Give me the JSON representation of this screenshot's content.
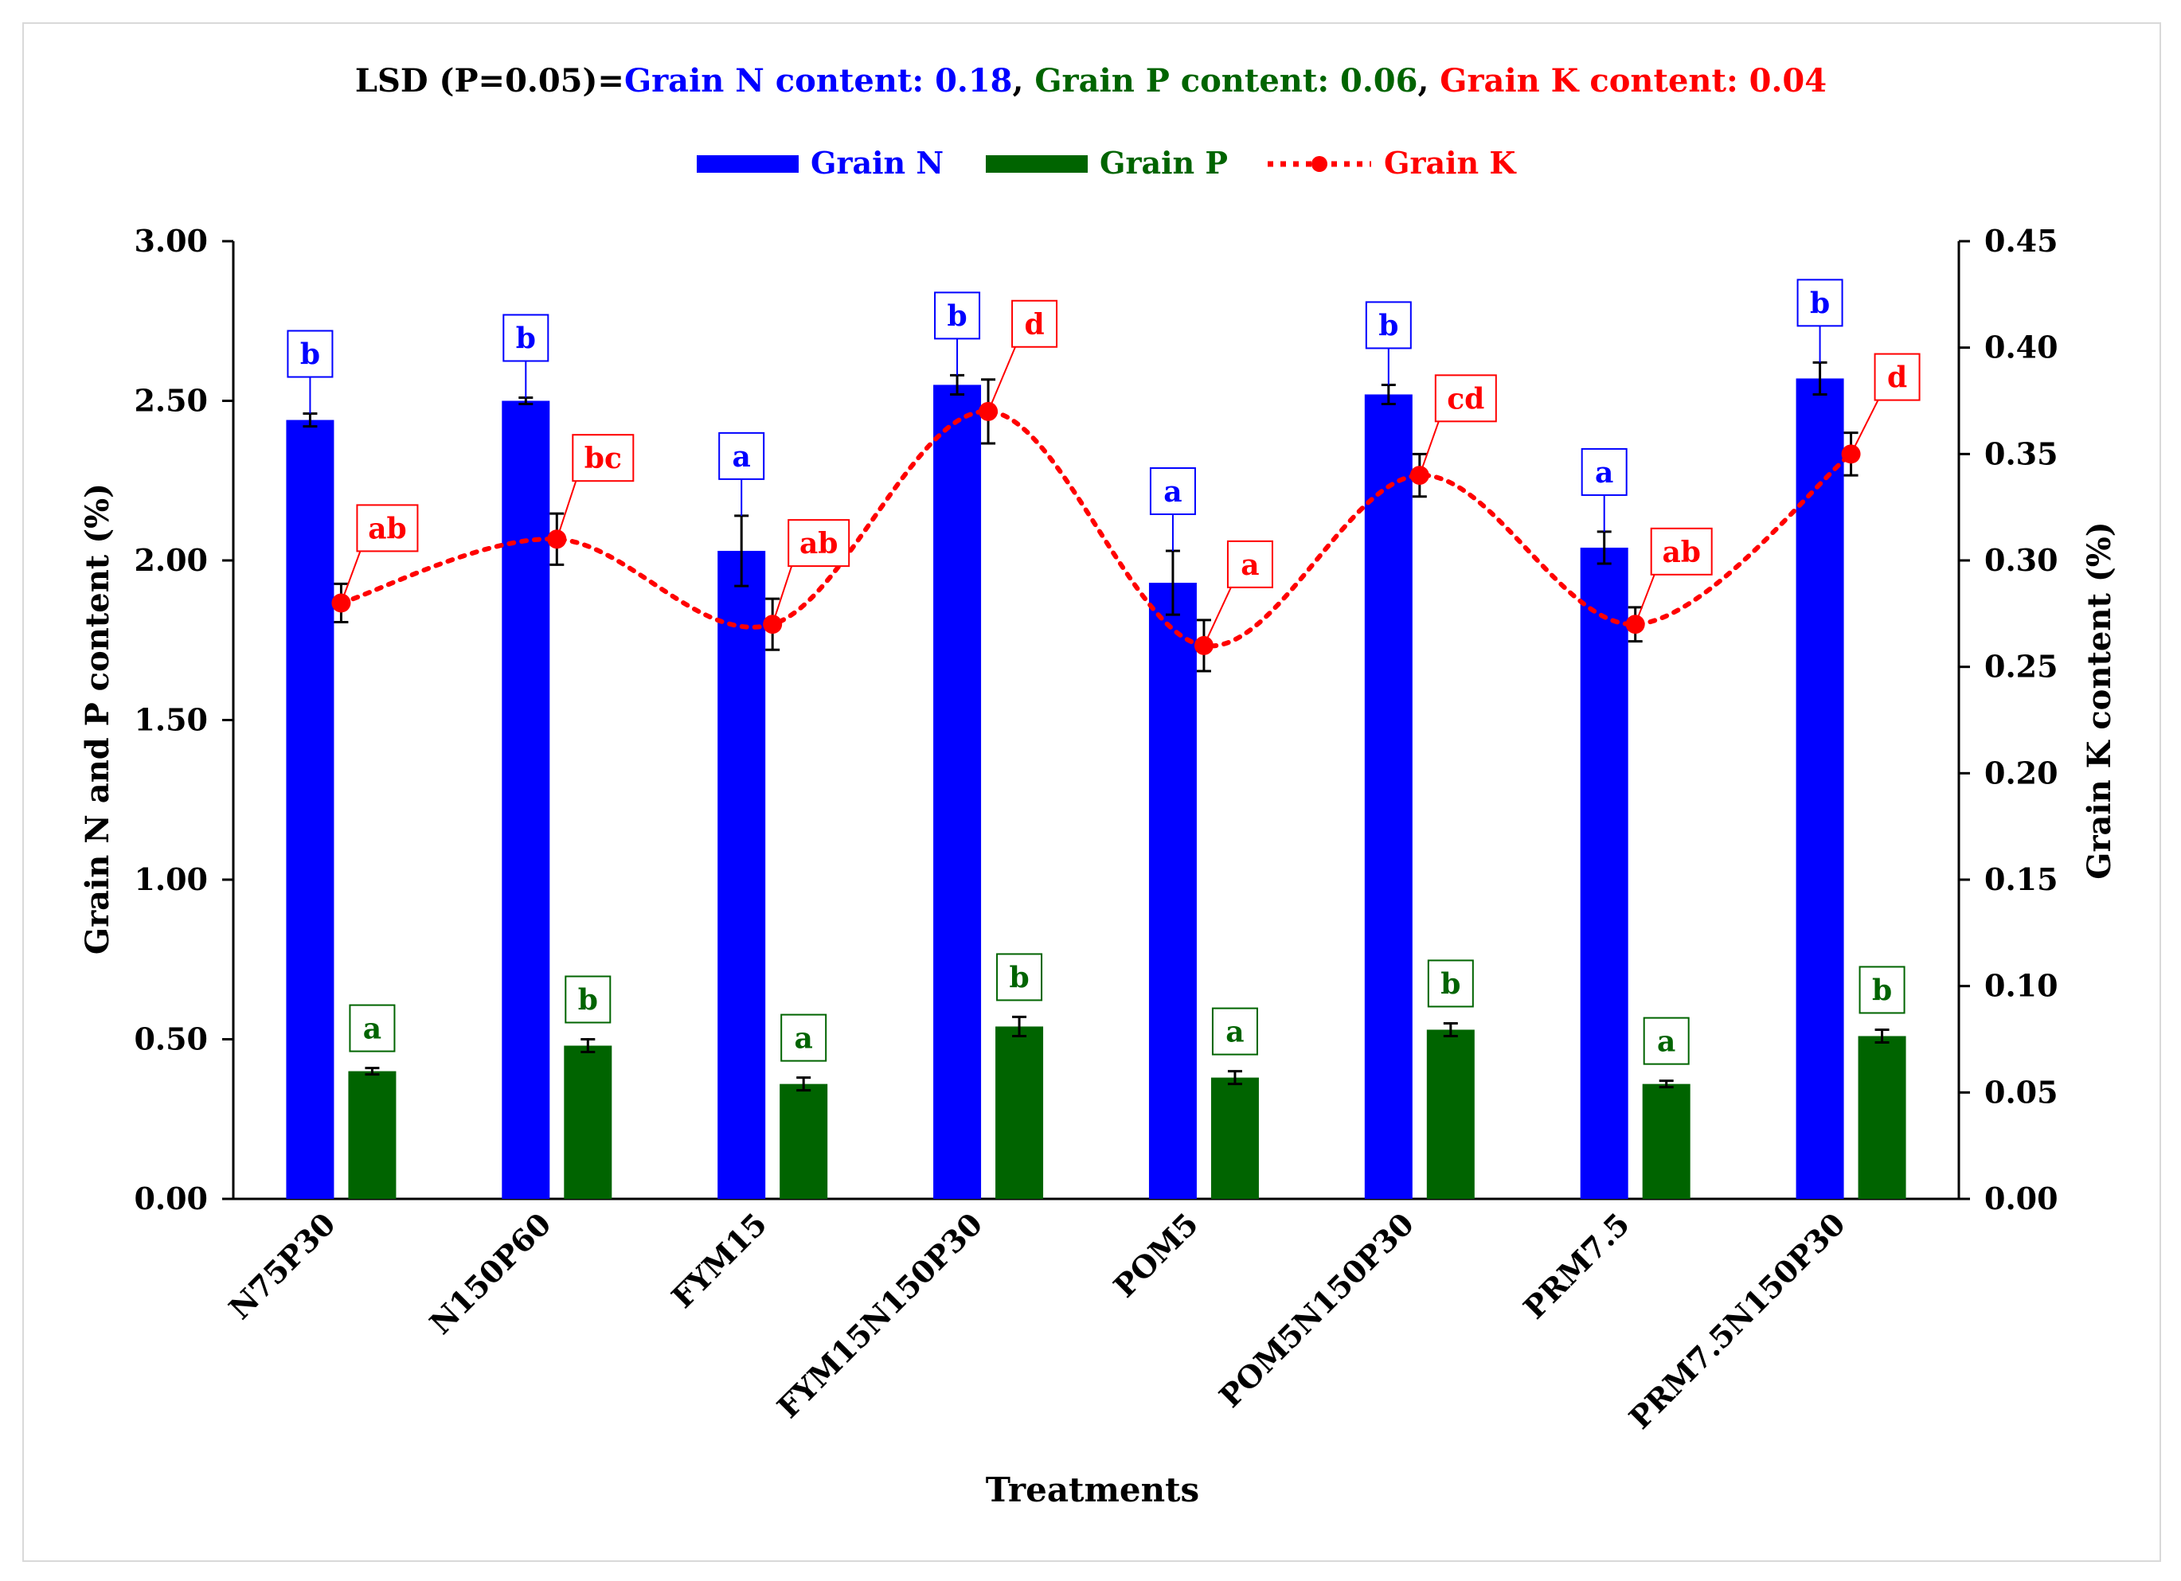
{
  "chart_data": {
    "type": "bar",
    "title_parts": [
      {
        "text": "LSD (P=0.05)=",
        "color": "#000000"
      },
      {
        "text": "Grain N content: 0.18",
        "color": "#0000ff"
      },
      {
        "text": ", ",
        "color": "#000000"
      },
      {
        "text": "Grain P content: 0.06",
        "color": "#006400"
      },
      {
        "text": ", ",
        "color": "#000000"
      },
      {
        "text": "Grain K content: 0.04",
        "color": "#ff0000"
      }
    ],
    "categories": [
      "N75P30",
      "N150P60",
      "FYM15",
      "FYM15N150P30",
      "POM5",
      "POM5N150P30",
      "PRM7.5",
      "PRM7.5N150P30"
    ],
    "xlabel": "Treatments",
    "ylabel_left": "Grain N and P content (%)",
    "ylabel_right": "Grain K content (%)",
    "ylim_left": [
      0,
      3
    ],
    "ylim_right": [
      0,
      0.45
    ],
    "yticks_left": [
      "0.00",
      "0.50",
      "1.00",
      "1.50",
      "2.00",
      "2.50",
      "3.00"
    ],
    "yticks_right": [
      "0.00",
      "0.05",
      "0.10",
      "0.15",
      "0.20",
      "0.25",
      "0.30",
      "0.35",
      "0.40",
      "0.45"
    ],
    "legend_position": "top-center",
    "series": [
      {
        "name": "Grain N",
        "type": "bar",
        "axis": "left",
        "color": "#0000ff",
        "values": [
          2.44,
          2.5,
          2.03,
          2.55,
          1.93,
          2.52,
          2.04,
          2.57
        ],
        "errors": [
          0.02,
          0.01,
          0.11,
          0.03,
          0.1,
          0.03,
          0.05,
          0.05
        ],
        "letters": [
          "b",
          "b",
          "a",
          "b",
          "a",
          "b",
          "a",
          "b"
        ]
      },
      {
        "name": "Grain P",
        "type": "bar",
        "axis": "left",
        "color": "#006400",
        "values": [
          0.4,
          0.48,
          0.36,
          0.54,
          0.38,
          0.53,
          0.36,
          0.51
        ],
        "errors": [
          0.01,
          0.02,
          0.02,
          0.03,
          0.02,
          0.02,
          0.01,
          0.02
        ],
        "letters": [
          "a",
          "b",
          "a",
          "b",
          "a",
          "b",
          "a",
          "b"
        ]
      },
      {
        "name": "Grain K",
        "type": "line",
        "axis": "right",
        "color": "#ff0000",
        "values": [
          0.28,
          0.31,
          0.27,
          0.37,
          0.26,
          0.34,
          0.27,
          0.35
        ],
        "errors": [
          0.009,
          0.012,
          0.012,
          0.015,
          0.012,
          0.01,
          0.008,
          0.01
        ],
        "letters": [
          "ab",
          "bc",
          "ab",
          "d",
          "a",
          "cd",
          "ab",
          "d"
        ]
      }
    ]
  }
}
